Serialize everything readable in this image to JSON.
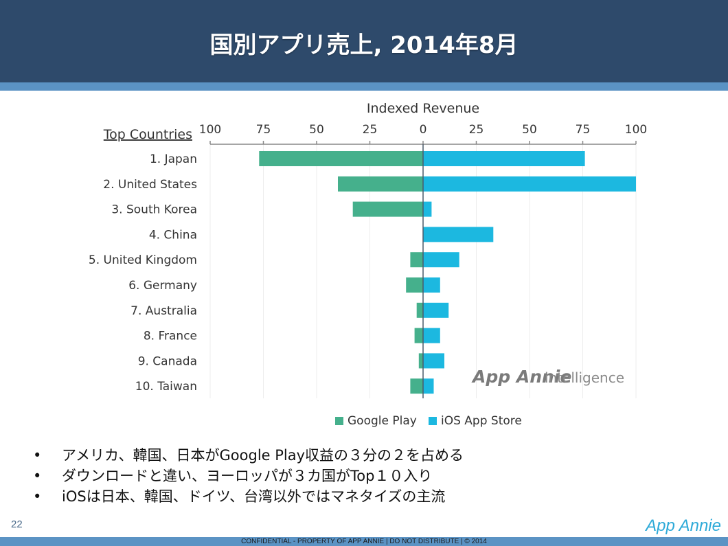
{
  "slide": {
    "title": "国別アプリ売上, 2014年8月",
    "page_number": "22",
    "footer": "CONFIDENTIAL - PROPERTY OF APP ANNIE  |  DO NOT DISTRIBUTE  |  © 2014",
    "logo": "App Annie"
  },
  "bullets": [
    "アメリカ、韓国、日本がGoogle Play収益の３分の２を占める",
    "ダウンロードと違い、ヨーロッパが３カ国がTop１０入り",
    "iOSは日本、韓国、ドイツ、台湾以外ではマネタイズの主流"
  ],
  "colors": {
    "google_play": "#45b08c",
    "ios": "#1cb8e0",
    "axis": "#888888",
    "text": "#333333",
    "header": "#2e4a6b",
    "accent": "#5b93c4"
  },
  "chart_data": {
    "type": "bar",
    "orientation": "horizontal-diverging",
    "axis_title": "Indexed Revenue",
    "category_header": "Top Countries",
    "ticks_left": [
      "100",
      "75",
      "50",
      "25",
      "0"
    ],
    "ticks_right": [
      "25",
      "50",
      "75",
      "100"
    ],
    "xlim": [
      -100,
      100
    ],
    "categories": [
      "1. Japan",
      "2. United States",
      "3. South Korea",
      "4. China",
      "5. United Kingdom",
      "6. Germany",
      "7. Australia",
      "8. France",
      "9. Canada",
      "10. Taiwan"
    ],
    "series": [
      {
        "name": "Google Play",
        "values": [
          77,
          40,
          33,
          0,
          6,
          8,
          3,
          4,
          2,
          6
        ]
      },
      {
        "name": "iOS App Store",
        "values": [
          76,
          100,
          4,
          33,
          17,
          8,
          12,
          8,
          10,
          5
        ]
      }
    ],
    "legend_position": "bottom",
    "watermark": "App Annie intelligence"
  }
}
